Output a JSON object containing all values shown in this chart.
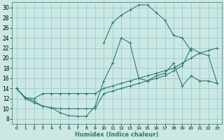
{
  "xlabel": "Humidex (Indice chaleur)",
  "bg_color": "#cce8e4",
  "grid_color": "#99cccc",
  "line_color": "#2d7a6e",
  "xlim": [
    -0.5,
    23.5
  ],
  "ylim": [
    7,
    31
  ],
  "xticks": [
    0,
    1,
    2,
    3,
    4,
    5,
    6,
    7,
    8,
    9,
    10,
    11,
    12,
    13,
    14,
    15,
    16,
    17,
    18,
    19,
    20,
    21,
    22,
    23
  ],
  "yticks": [
    8,
    10,
    12,
    14,
    16,
    18,
    20,
    22,
    24,
    26,
    28,
    30
  ],
  "line1_x": [
    0,
    1,
    2,
    3,
    4,
    5,
    6,
    7,
    8,
    9,
    10,
    11,
    12,
    13,
    14,
    15,
    16,
    17,
    18,
    19,
    20,
    21,
    22,
    23
  ],
  "line1_y": [
    14,
    12,
    11.2,
    10.5,
    10.2,
    9.2,
    8.6,
    8.5,
    8.5,
    10.5,
    15.5,
    19,
    24,
    23,
    16,
    15.5,
    16.5,
    17,
    19,
    14.5,
    16.5,
    15.5,
    15.5,
    15
  ],
  "line2_x": [
    0,
    1,
    2,
    3,
    4,
    5,
    6,
    7,
    8,
    9,
    10,
    11,
    12,
    13,
    14,
    15,
    16,
    17,
    18,
    19,
    20,
    21,
    22,
    23
  ],
  "line2_y": [
    14,
    12.2,
    12,
    13,
    13,
    13,
    13,
    13,
    13,
    13,
    14,
    14.5,
    15,
    15.5,
    16,
    16.5,
    17,
    17.5,
    18,
    19,
    20,
    21,
    21.5,
    22
  ],
  "line3_x": [
    0,
    1,
    2,
    3,
    4,
    5,
    6,
    7,
    8,
    9,
    10,
    11,
    12,
    13,
    14,
    15,
    16,
    17,
    18,
    19,
    20,
    21,
    22,
    23
  ],
  "line3_y": [
    14,
    12.2,
    11.5,
    10.5,
    10.2,
    10,
    10,
    10,
    10,
    10,
    13,
    13.5,
    14,
    14.5,
    15,
    15.5,
    16,
    16.5,
    17.5,
    18.5,
    22,
    21,
    20.5,
    15
  ],
  "line4_x": [
    10,
    11,
    12,
    13,
    14,
    15,
    16,
    17,
    18,
    19,
    20
  ],
  "line4_y": [
    23,
    27,
    28.5,
    29.5,
    30.5,
    30.5,
    29,
    27.5,
    24.5,
    24,
    21.5
  ]
}
